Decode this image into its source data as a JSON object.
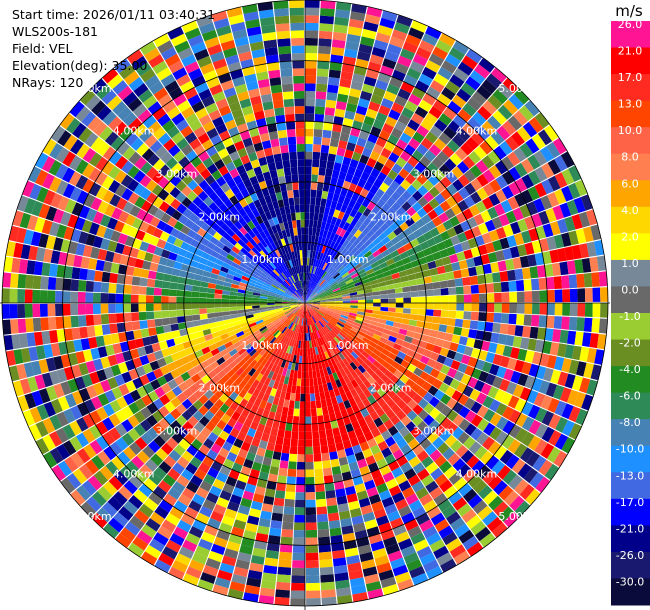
{
  "info": {
    "start_time": "Start time: 2026/01/11 03:40:31",
    "instrument": "WLS200s-181",
    "field": "Field: VEL",
    "elevation": "Elevation(deg): 35.00",
    "nrays": "NRays: 120"
  },
  "colorbar": {
    "unit": "m/s",
    "levels": [
      {
        "label": "26.0",
        "color": "#ff1493"
      },
      {
        "label": "21.0",
        "color": "#ff0000"
      },
      {
        "label": "17.0",
        "color": "#ff2a20"
      },
      {
        "label": "13.0",
        "color": "#ff4500"
      },
      {
        "label": "10.0",
        "color": "#ff6347"
      },
      {
        "label": "8.0",
        "color": "#ff7f50"
      },
      {
        "label": "6.0",
        "color": "#ffa500"
      },
      {
        "label": "4.0",
        "color": "#ffd700"
      },
      {
        "label": "2.0",
        "color": "#ffff00"
      },
      {
        "label": "1.0",
        "color": "#778899"
      },
      {
        "label": "0.0",
        "color": "#696969"
      },
      {
        "label": "-1.0",
        "color": "#9acd32"
      },
      {
        "label": "-2.0",
        "color": "#6b8e23"
      },
      {
        "label": "-4.0",
        "color": "#228b22"
      },
      {
        "label": "-6.0",
        "color": "#2e8b57"
      },
      {
        "label": "-8.0",
        "color": "#4682b4"
      },
      {
        "label": "-10.0",
        "color": "#1e90ff"
      },
      {
        "label": "-13.0",
        "color": "#4169e1"
      },
      {
        "label": "-17.0",
        "color": "#0000ff"
      },
      {
        "label": "-21.0",
        "color": "#00008b"
      },
      {
        "label": "-26.0",
        "color": "#191970"
      },
      {
        "label": "-30.0",
        "color": "#0b0b3b"
      }
    ]
  },
  "range_rings": [
    {
      "km": 1,
      "label": "1.00km"
    },
    {
      "km": 2,
      "label": "2.00km"
    },
    {
      "km": 3,
      "label": "3.00km"
    },
    {
      "km": 4,
      "label": "4.00km"
    },
    {
      "km": 5,
      "label": "5.00km"
    }
  ],
  "max_range_km": 5
}
